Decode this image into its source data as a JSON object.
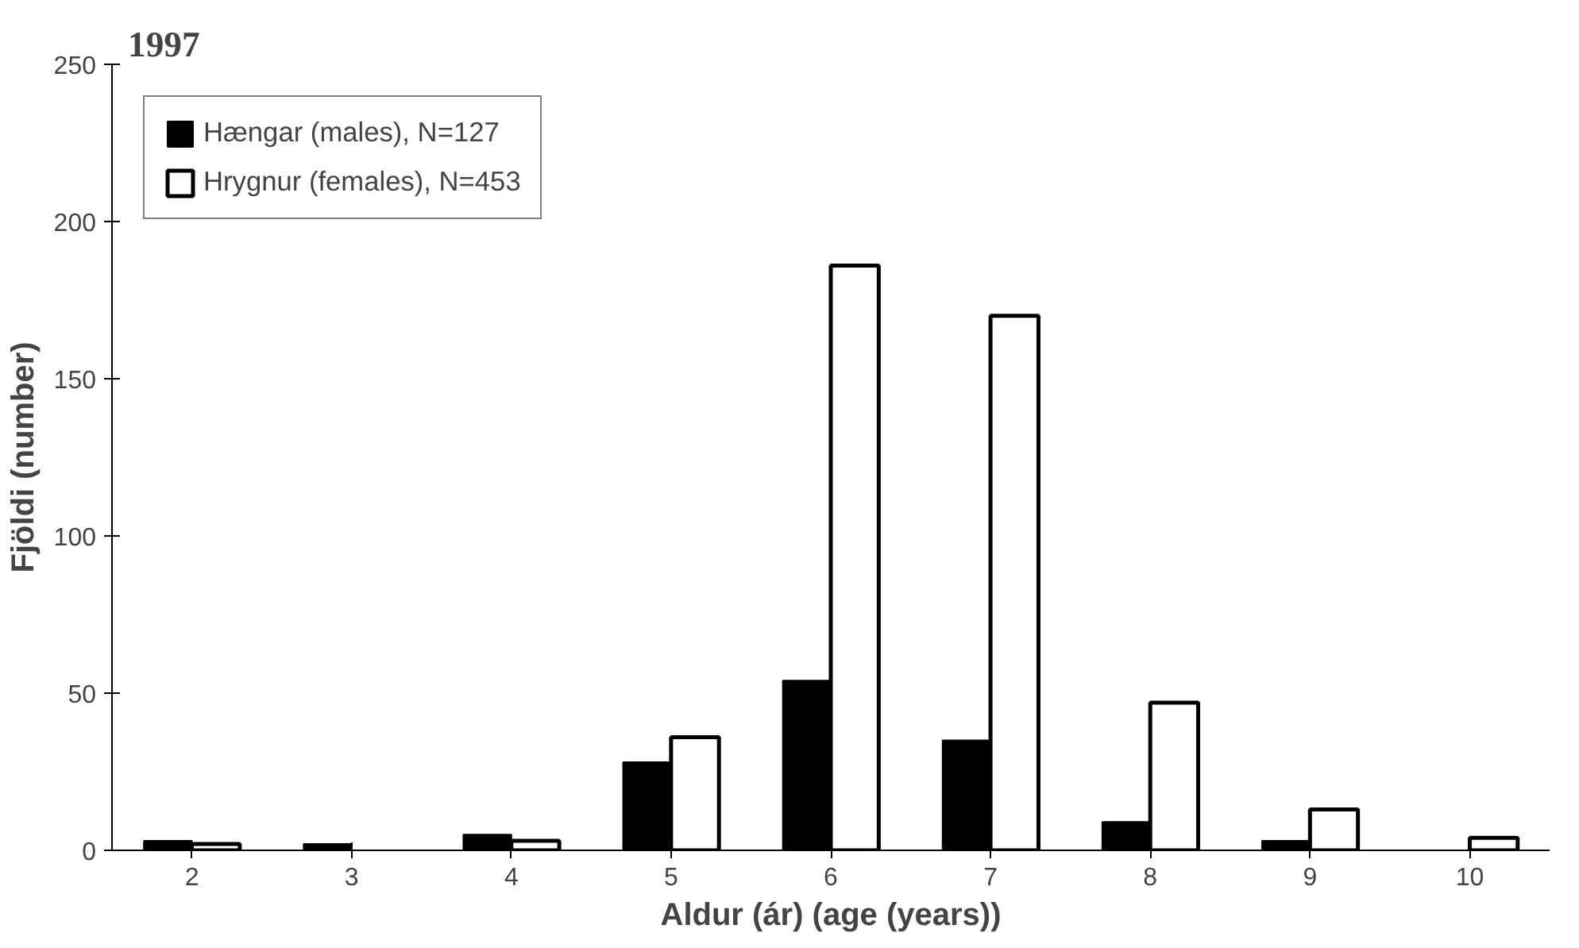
{
  "chart_data": {
    "type": "bar",
    "title": "1997",
    "xlabel": "Aldur (ár) (age (years))",
    "ylabel": "Fjöldi (number)",
    "categories": [
      "2",
      "3",
      "4",
      "5",
      "6",
      "7",
      "8",
      "9",
      "10"
    ],
    "series": [
      {
        "name": "Hængar (males), N=127",
        "color": "#000000",
        "values": [
          3,
          2,
          5,
          28,
          54,
          35,
          9,
          3,
          null
        ]
      },
      {
        "name": "Hrygnur (females), N=453",
        "color": "#ffffff",
        "values": [
          2,
          null,
          3,
          36,
          186,
          170,
          47,
          13,
          4
        ]
      }
    ],
    "ylim": [
      0,
      250
    ],
    "yticks": [
      0,
      50,
      100,
      150,
      200,
      250
    ],
    "grid": false,
    "legend": "top left"
  }
}
